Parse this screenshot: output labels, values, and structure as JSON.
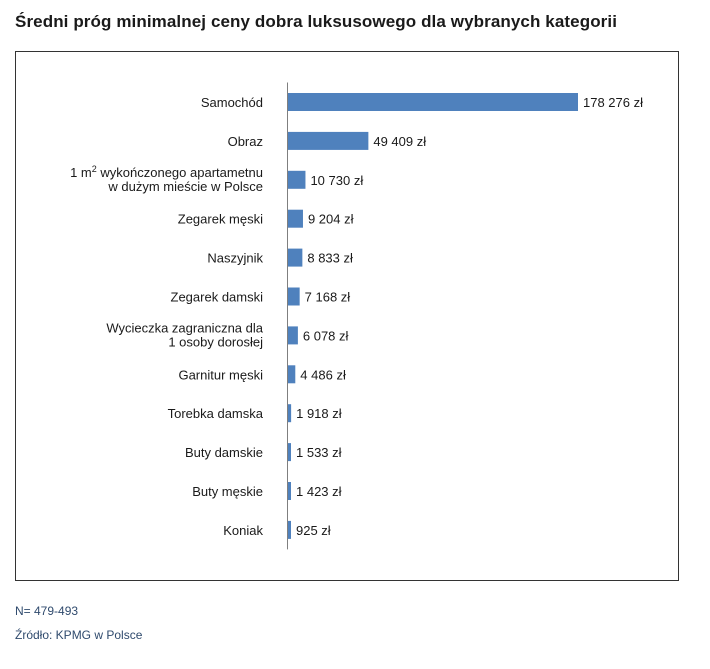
{
  "title": "Średni próg minimalnej ceny dobra luksusowego dla wybranych kategorii",
  "footnote_n": "N= 479-493",
  "footnote_source": "Źródło: KPMG w Polsce",
  "colors": {
    "bar": "#4f81bd",
    "axis": "#7f7f7f",
    "text": "#1a1a1a",
    "footnote": "#2f4a6d"
  },
  "chart_data": {
    "type": "bar",
    "orientation": "horizontal",
    "title": "Średni próg minimalnej ceny dobra luksusowego dla wybranych kategorii",
    "xlabel": "",
    "ylabel": "",
    "grid": false,
    "categories": [
      {
        "lines": [
          "Samochód"
        ],
        "sup": ""
      },
      {
        "lines": [
          "Obraz"
        ],
        "sup": ""
      },
      {
        "lines": [
          "1 m",
          " wykończonego apartametnu",
          "w dużym mieście w Polsce"
        ],
        "sup": "2"
      },
      {
        "lines": [
          "Zegarek męski"
        ],
        "sup": ""
      },
      {
        "lines": [
          "Naszyjnik"
        ],
        "sup": ""
      },
      {
        "lines": [
          "Zegarek damski"
        ],
        "sup": ""
      },
      {
        "lines": [
          "Wycieczka zagraniczna dla",
          "1 osoby dorosłej"
        ],
        "sup": ""
      },
      {
        "lines": [
          "Garnitur męski"
        ],
        "sup": ""
      },
      {
        "lines": [
          "Torebka damska"
        ],
        "sup": ""
      },
      {
        "lines": [
          "Buty damskie"
        ],
        "sup": ""
      },
      {
        "lines": [
          "Buty męskie"
        ],
        "sup": ""
      },
      {
        "lines": [
          "Koniak"
        ],
        "sup": ""
      }
    ],
    "values": [
      178276,
      49409,
      10730,
      9204,
      8833,
      7168,
      6078,
      4486,
      1918,
      1533,
      1423,
      925
    ],
    "value_labels": [
      "178 276 zł",
      "49 409 zł",
      "10 730 zł",
      "9 204 zł",
      "8 833 zł",
      "7 168 zł",
      "6 078 zł",
      "4 486 zł",
      "1 918 zł",
      "1 533 zł",
      "1 423 zł",
      "925 zł"
    ],
    "xlim": [
      0,
      178276
    ]
  }
}
